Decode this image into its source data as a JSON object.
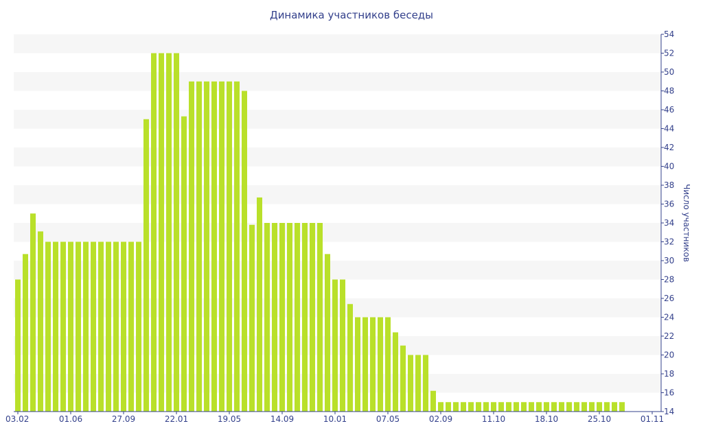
{
  "chart_data": {
    "type": "bar",
    "title": "Динамика участников беседы",
    "ylabel": "Число участников",
    "ylim": [
      14,
      54
    ],
    "yticks": [
      14,
      16,
      18,
      20,
      22,
      24,
      26,
      28,
      30,
      32,
      34,
      36,
      38,
      40,
      42,
      44,
      46,
      48,
      50,
      52,
      54
    ],
    "y_axis_position": "right",
    "grid": "horizontal alternating bands",
    "bar_color": "#b9e02a",
    "band_color": "#f6f6f6",
    "text_color": "#33408b",
    "xtick_labels": [
      {
        "index": 0,
        "label": "03.02"
      },
      {
        "index": 7,
        "label": "01.06"
      },
      {
        "index": 14,
        "label": "27.09"
      },
      {
        "index": 21,
        "label": "22.01"
      },
      {
        "index": 28,
        "label": "19.05"
      },
      {
        "index": 35,
        "label": "14.09"
      },
      {
        "index": 42,
        "label": "10.01"
      },
      {
        "index": 49,
        "label": "07.05"
      },
      {
        "index": 56,
        "label": "02.09"
      },
      {
        "index": 63,
        "label": "11.10"
      },
      {
        "index": 70,
        "label": "18.10"
      },
      {
        "index": 77,
        "label": "25.10"
      },
      {
        "index": 84,
        "label": "01.11"
      }
    ],
    "values": [
      28,
      30.7,
      35,
      33.1,
      32,
      32,
      32,
      32,
      32,
      32,
      32,
      32,
      32,
      32,
      32,
      32,
      32,
      45,
      52,
      52,
      52,
      52,
      45.3,
      49,
      49,
      49,
      49,
      49,
      49,
      49,
      48,
      33.8,
      36.7,
      34,
      34,
      34,
      34,
      34,
      34,
      34,
      34,
      30.7,
      28,
      28,
      25.4,
      24,
      24,
      24,
      24,
      24,
      22.4,
      21,
      20,
      20,
      20,
      16.2,
      15,
      15,
      15,
      15,
      15,
      15,
      15,
      15,
      15,
      15,
      15,
      15,
      15,
      15,
      15,
      15,
      15,
      15,
      15,
      15,
      15,
      15,
      15,
      15,
      15
    ]
  }
}
